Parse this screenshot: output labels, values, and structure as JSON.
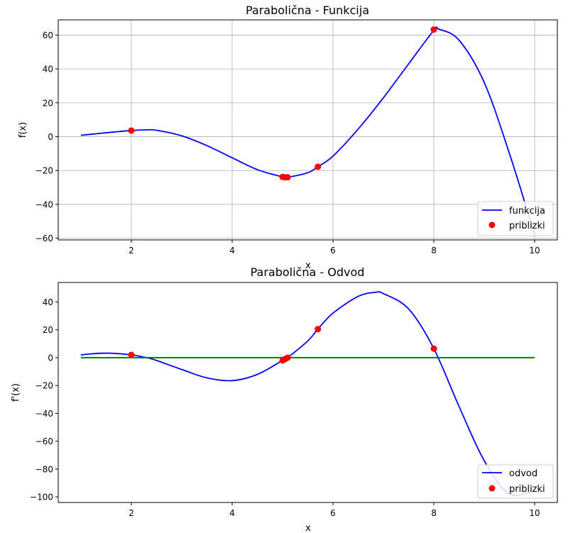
{
  "chart_data": [
    {
      "type": "line",
      "title": "Parabolična - Funkcija",
      "xlabel": "x",
      "ylabel": "f(x)",
      "xlim": [
        0.55,
        10.45
      ],
      "ylim": [
        -61,
        69
      ],
      "xticks": [
        2,
        4,
        6,
        8,
        10
      ],
      "yticks": [
        -60,
        -40,
        -20,
        0,
        20,
        40,
        60
      ],
      "grid": true,
      "legend_position": "lower-right",
      "series": [
        {
          "name": "funkcija",
          "style": "line",
          "color": "#0000ff",
          "x": [
            1.0,
            1.5,
            2.0,
            2.3,
            2.5,
            3.0,
            3.5,
            4.0,
            4.5,
            5.0,
            5.1,
            5.5,
            5.7,
            6.0,
            6.5,
            7.0,
            7.5,
            8.0,
            8.1,
            8.5,
            9.0,
            9.5,
            10.0
          ],
          "y": [
            0.8,
            2.3,
            3.6,
            4.0,
            3.8,
            0.5,
            -5.3,
            -12.5,
            -19.5,
            -23.8,
            -24.0,
            -21.3,
            -17.8,
            -11.5,
            4.5,
            23.0,
            43.0,
            62.8,
            63.5,
            57.0,
            32.0,
            -10.0,
            -58.0
          ]
        },
        {
          "name": "priblizki",
          "style": "points",
          "color": "#ff0000",
          "x": [
            2.0,
            5.0,
            5.05,
            5.1,
            5.7,
            8.0
          ],
          "y": [
            3.6,
            -23.8,
            -24.0,
            -24.0,
            -17.8,
            63.3
          ]
        }
      ]
    },
    {
      "type": "line",
      "title": "Parabolična - Odvod",
      "xlabel": "x",
      "ylabel": "f'(x)",
      "xlim": [
        0.55,
        10.45
      ],
      "ylim": [
        -104,
        54
      ],
      "xticks": [
        2,
        4,
        6,
        8,
        10
      ],
      "yticks": [
        -100,
        -80,
        -60,
        -40,
        -20,
        0,
        20,
        40
      ],
      "grid": false,
      "legend_position": "lower-right",
      "series": [
        {
          "name": "odvod",
          "style": "line",
          "color": "#0000ff",
          "x": [
            1.0,
            1.3,
            1.6,
            2.0,
            2.3,
            2.5,
            3.0,
            3.5,
            4.0,
            4.5,
            5.0,
            5.1,
            5.5,
            5.7,
            6.0,
            6.5,
            6.85,
            7.0,
            7.5,
            8.0,
            8.5,
            9.0,
            9.5,
            10.0
          ],
          "y": [
            2.0,
            3.0,
            3.2,
            2.0,
            0.0,
            -2.0,
            -8.5,
            -14.5,
            -16.5,
            -12.0,
            -2.0,
            0.0,
            12.0,
            20.5,
            32.0,
            44.0,
            47.0,
            46.0,
            35.0,
            6.5,
            -35.0,
            -74.0,
            -98.0,
            -95.0
          ]
        },
        {
          "name": "",
          "style": "line",
          "color": "#008000",
          "x": [
            1.0,
            10.0
          ],
          "y": [
            0,
            0
          ]
        },
        {
          "name": "priblizki",
          "style": "points",
          "color": "#ff0000",
          "x": [
            2.0,
            5.0,
            5.05,
            5.1,
            5.7,
            8.0
          ],
          "y": [
            2.0,
            -2.0,
            -1.0,
            0.0,
            20.5,
            6.5
          ]
        }
      ]
    }
  ]
}
